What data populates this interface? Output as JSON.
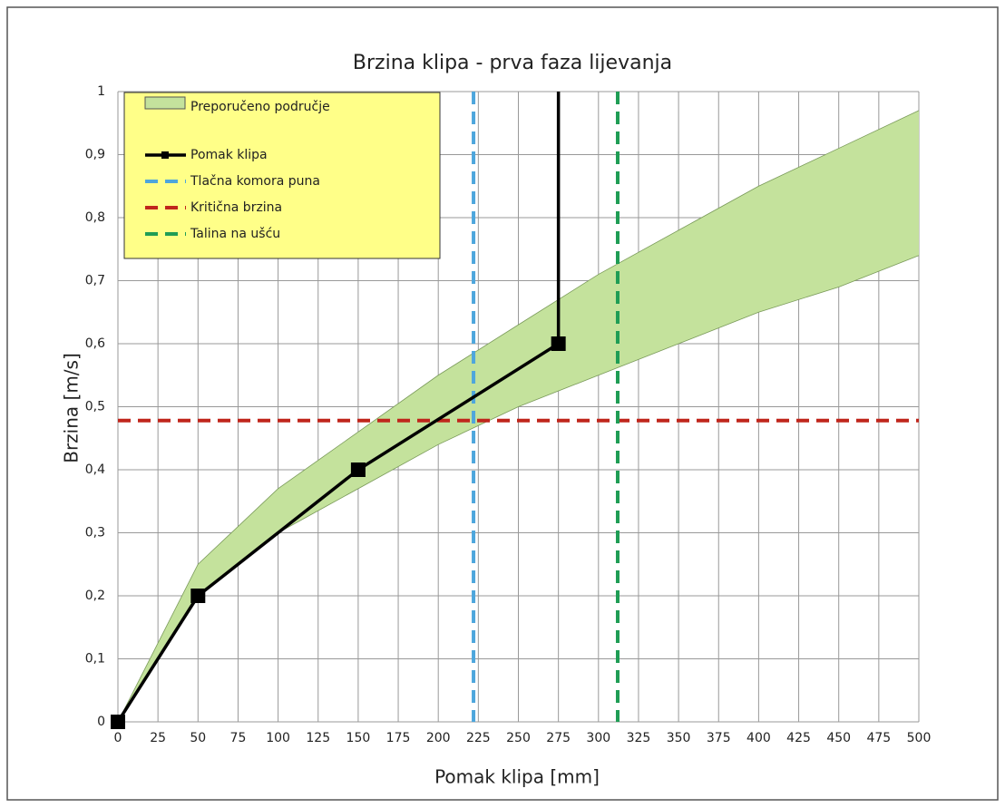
{
  "chart_data": {
    "type": "line",
    "title": "Brzina klipa - prva faza lijevanja",
    "xlabel": "Pomak klipa [mm]",
    "ylabel": "Brzina [m/s]",
    "xlim": [
      0,
      500
    ],
    "ylim": [
      0,
      1
    ],
    "xticks": [
      0,
      25,
      50,
      75,
      100,
      125,
      150,
      175,
      200,
      225,
      250,
      275,
      300,
      325,
      350,
      375,
      400,
      425,
      450,
      475,
      500
    ],
    "yticks": [
      0,
      {
        "value": 0.1,
        "label": "0,1"
      },
      {
        "value": 0.2,
        "label": "0,2"
      },
      {
        "value": 0.3,
        "label": "0,3"
      },
      {
        "value": 0.4,
        "label": "0,4"
      },
      {
        "value": 0.5,
        "label": "0,5"
      },
      {
        "value": 0.6,
        "label": "0,6"
      },
      {
        "value": 0.7,
        "label": "0,7"
      },
      {
        "value": 0.8,
        "label": "0,8"
      },
      {
        "value": 0.9,
        "label": "0,9"
      },
      1
    ],
    "grid": true,
    "legend": "upper left",
    "band": {
      "name": "Preporučeno područje",
      "color": "#c4e29c",
      "x": [
        0,
        50,
        100,
        150,
        200,
        250,
        300,
        350,
        400,
        450,
        500
      ],
      "upper": [
        0,
        0.25,
        0.37,
        0.46,
        0.55,
        0.63,
        0.71,
        0.78,
        0.85,
        0.91,
        0.97
      ],
      "lower": [
        0,
        0.2,
        0.3,
        0.37,
        0.44,
        0.5,
        0.55,
        0.6,
        0.65,
        0.69,
        0.74
      ]
    },
    "series": [
      {
        "name": "Pomak klipa",
        "color": "#000000",
        "x": [
          0,
          50,
          150,
          275,
          275
        ],
        "values": [
          0,
          0.2,
          0.4,
          0.6,
          1
        ]
      }
    ],
    "reference_lines": [
      {
        "name": "Tlačna komora puna",
        "color": "#4ea6dc",
        "axis": "x",
        "value": 222
      },
      {
        "name": "Kritična brzina",
        "color": "#c0261c",
        "axis": "y",
        "value": 0.478
      },
      {
        "name": "Talina na ušću",
        "color": "#1f9d55",
        "axis": "x",
        "value": 312
      }
    ]
  }
}
